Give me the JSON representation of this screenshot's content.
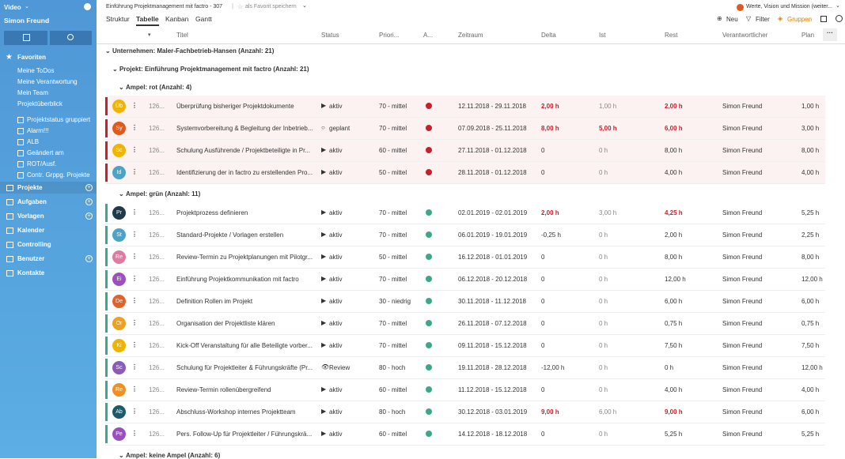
{
  "sidebar": {
    "workspace": "Video",
    "user": "Simon Freund",
    "favorites": {
      "label": "Favoriten",
      "items": [
        "Meine ToDos",
        "Meine Verantwortung",
        "Mein Team",
        "Projektüberblick",
        "Projektstatus gruppiert",
        "Alarm!!!",
        "ALB",
        "Geändert am",
        "ROT/Ausf.",
        "Contr. Grppg. Projekte"
      ]
    },
    "sections": [
      {
        "label": "Projekte",
        "add": true
      },
      {
        "label": "Aufgaben",
        "add": true
      },
      {
        "label": "Vorlagen",
        "add": true
      },
      {
        "label": "Kalender",
        "add": false
      },
      {
        "label": "Controlling",
        "add": false
      },
      {
        "label": "Benutzer",
        "add": true
      },
      {
        "label": "Kontakte",
        "add": false
      }
    ]
  },
  "header": {
    "breadcrumb": "Einführung Projektmanagement mit factro - 307",
    "favorite": "als Favorit speichern",
    "tabs": [
      "Struktur",
      "Tabelle",
      "Kanban",
      "Gantt"
    ],
    "active_tab": 1,
    "context": "Werte, Vision und Mission (weiter...",
    "actions": [
      "Neu",
      "Filter",
      "Gruppen"
    ]
  },
  "table": {
    "columns": [
      "Titel",
      "Status",
      "Priori...",
      "A...",
      "Zeitraum",
      "Delta",
      "Ist",
      "Rest",
      "Verantwortlicher",
      "Plan"
    ],
    "company": "Unternehmen: Maler-Fachbetrieb-Hansen (Anzahl: 21)",
    "project": "Projekt: Einführung Projektmanagement mit factro (Anzahl: 21)",
    "groups": [
      {
        "label": "Ampel: rot (Anzahl: 4)",
        "color": "#c8202a",
        "row_bg": "#fdf2f2",
        "rows": [
          {
            "avatar": "Üb",
            "avatar_color": "#f0b400",
            "id": "126...",
            "title": "Überprüfung bisheriger Projektdokumente",
            "status": "aktiv",
            "status_icon": "play",
            "priority": "70 - mittel",
            "period": "12.11.2018 - 29.11.2018",
            "delta": "2,00 h",
            "actual": "1,00 h",
            "remaining": "2,00 h",
            "owner": "Simon Freund",
            "plan": "1,00 h",
            "emphasis": [
              "delta",
              "remaining"
            ]
          },
          {
            "avatar": "Sy",
            "avatar_color": "#e05a1e",
            "id": "126...",
            "title": "Systemvorbereitung & Begleitung der Inbetrieb...",
            "status": "geplant",
            "status_icon": "circle",
            "priority": "70 - mittel",
            "period": "07.09.2018 - 25.11.2018",
            "delta": "8,00 h",
            "actual": "5,00 h",
            "remaining": "6,00 h",
            "owner": "Simon Freund",
            "plan": "3,00 h",
            "emphasis": [
              "delta",
              "actual",
              "remaining"
            ]
          },
          {
            "avatar": "Sc",
            "avatar_color": "#f0b400",
            "id": "126...",
            "title": "Schulung Ausführende / Projektbeteiligte in Pr...",
            "status": "aktiv",
            "status_icon": "play",
            "priority": "60 - mittel",
            "period": "27.11.2018 - 01.12.2018",
            "delta": "0",
            "actual": "0 h",
            "remaining": "8,00 h",
            "owner": "Simon Freund",
            "plan": "8,00 h",
            "emphasis": []
          },
          {
            "avatar": "Id",
            "avatar_color": "#4aa3c8",
            "id": "126...",
            "title": "Identifizierung der in factro zu erstellenden Pro...",
            "status": "aktiv",
            "status_icon": "play",
            "priority": "50 - mittel",
            "period": "28.11.2018 - 01.12.2018",
            "delta": "0",
            "actual": "0 h",
            "remaining": "4,00 h",
            "owner": "Simon Freund",
            "plan": "4,00 h",
            "emphasis": []
          }
        ]
      },
      {
        "label": "Ampel: grün (Anzahl: 11)",
        "color": "#3aa88a",
        "row_bg": "#ffffff",
        "rows": [
          {
            "avatar": "Pr",
            "avatar_color": "#1f3a4d",
            "id": "126...",
            "title": "Projektprozess definieren",
            "status": "aktiv",
            "status_icon": "play",
            "priority": "70 - mittel",
            "period": "02.01.2019 - 02.01.2019",
            "delta": "2,00 h",
            "actual": "3,00 h",
            "remaining": "4,25 h",
            "owner": "Simon Freund",
            "plan": "5,25 h",
            "emphasis": [
              "delta",
              "remaining"
            ]
          },
          {
            "avatar": "St",
            "avatar_color": "#4aa3c8",
            "id": "126...",
            "title": "Standard-Projekte / Vorlagen erstellen",
            "status": "aktiv",
            "status_icon": "play",
            "priority": "70 - mittel",
            "period": "06.01.2019 - 19.01.2019",
            "delta": "-0,25 h",
            "actual": "0 h",
            "remaining": "2,00 h",
            "owner": "Simon Freund",
            "plan": "2,25 h",
            "emphasis": []
          },
          {
            "avatar": "Re",
            "avatar_color": "#e07aa0",
            "id": "126...",
            "title": "Review-Termin zu Projektplanungen mit Pilotgr...",
            "status": "aktiv",
            "status_icon": "play",
            "priority": "50 - mittel",
            "period": "16.12.2018 - 01.01.2019",
            "delta": "0",
            "actual": "0 h",
            "remaining": "8,00 h",
            "owner": "Simon Freund",
            "plan": "8,00 h",
            "emphasis": []
          },
          {
            "avatar": "Ei",
            "avatar_color": "#9b4fc0",
            "id": "126...",
            "title": "Einführung Projektkommunikation mit factro",
            "status": "aktiv",
            "status_icon": "play",
            "priority": "70 - mittel",
            "period": "06.12.2018 - 20.12.2018",
            "delta": "0",
            "actual": "0 h",
            "remaining": "12,00 h",
            "owner": "Simon Freund",
            "plan": "12,00 h",
            "emphasis": []
          },
          {
            "avatar": "De",
            "avatar_color": "#e0632a",
            "id": "126...",
            "title": "Definition Rollen im Projekt",
            "status": "aktiv",
            "status_icon": "play",
            "priority": "30 - niedrig",
            "period": "30.11.2018 - 11.12.2018",
            "delta": "0",
            "actual": "0 h",
            "remaining": "6,00 h",
            "owner": "Simon Freund",
            "plan": "6,00 h",
            "emphasis": []
          },
          {
            "avatar": "Or",
            "avatar_color": "#f0a020",
            "id": "126...",
            "title": "Organisation der Projektliste klären",
            "status": "aktiv",
            "status_icon": "play",
            "priority": "70 - mittel",
            "period": "26.11.2018 - 07.12.2018",
            "delta": "0",
            "actual": "0 h",
            "remaining": "0,75 h",
            "owner": "Simon Freund",
            "plan": "0,75 h",
            "emphasis": []
          },
          {
            "avatar": "Ki",
            "avatar_color": "#f0b400",
            "id": "126...",
            "title": "Kick-Off Veranstaltung für alle Beteiligte vorber...",
            "status": "aktiv",
            "status_icon": "play",
            "priority": "70 - mittel",
            "period": "09.11.2018 - 15.12.2018",
            "delta": "0",
            "actual": "0 h",
            "remaining": "7,50 h",
            "owner": "Simon Freund",
            "plan": "7,50 h",
            "emphasis": []
          },
          {
            "avatar": "Sc",
            "avatar_color": "#8a5cb8",
            "id": "126...",
            "title": "Schulung für Projektleiter & Führungskräfte (Pr...",
            "status": "Review",
            "status_icon": "eye",
            "priority": "80 - hoch",
            "period": "19.11.2018 - 28.12.2018",
            "delta": "-12,00 h",
            "actual": "0 h",
            "remaining": "0 h",
            "owner": "Simon Freund",
            "plan": "12,00 h",
            "emphasis": []
          },
          {
            "avatar": "Re",
            "avatar_color": "#f09020",
            "id": "126...",
            "title": "Review-Termin rollenübergreifend",
            "status": "aktiv",
            "status_icon": "play",
            "priority": "60 - mittel",
            "period": "11.12.2018 - 15.12.2018",
            "delta": "0",
            "actual": "0 h",
            "remaining": "4,00 h",
            "owner": "Simon Freund",
            "plan": "4,00 h",
            "emphasis": []
          },
          {
            "avatar": "Ab",
            "avatar_color": "#1f5a6a",
            "id": "126...",
            "title": "Abschluss-Workshop internes Projektteam",
            "status": "aktiv",
            "status_icon": "play",
            "priority": "80 - hoch",
            "period": "30.12.2018 - 03.01.2019",
            "delta": "9,00 h",
            "actual": "6,00 h",
            "remaining": "9,00 h",
            "owner": "Simon Freund",
            "plan": "6,00 h",
            "emphasis": [
              "delta",
              "remaining"
            ]
          },
          {
            "avatar": "Pe",
            "avatar_color": "#9a4fc0",
            "id": "126...",
            "title": "Pers. Follow-Up für Projektleiter / Führungskrä...",
            "status": "aktiv",
            "status_icon": "play",
            "priority": "60 - mittel",
            "period": "14.12.2018 - 18.12.2018",
            "delta": "0",
            "actual": "0 h",
            "remaining": "5,25 h",
            "owner": "Simon Freund",
            "plan": "5,25 h",
            "emphasis": []
          }
        ]
      },
      {
        "label": "Ampel: keine Ampel (Anzahl: 6)",
        "color": "#999999",
        "row_bg": "#ffffff",
        "rows": []
      }
    ]
  }
}
